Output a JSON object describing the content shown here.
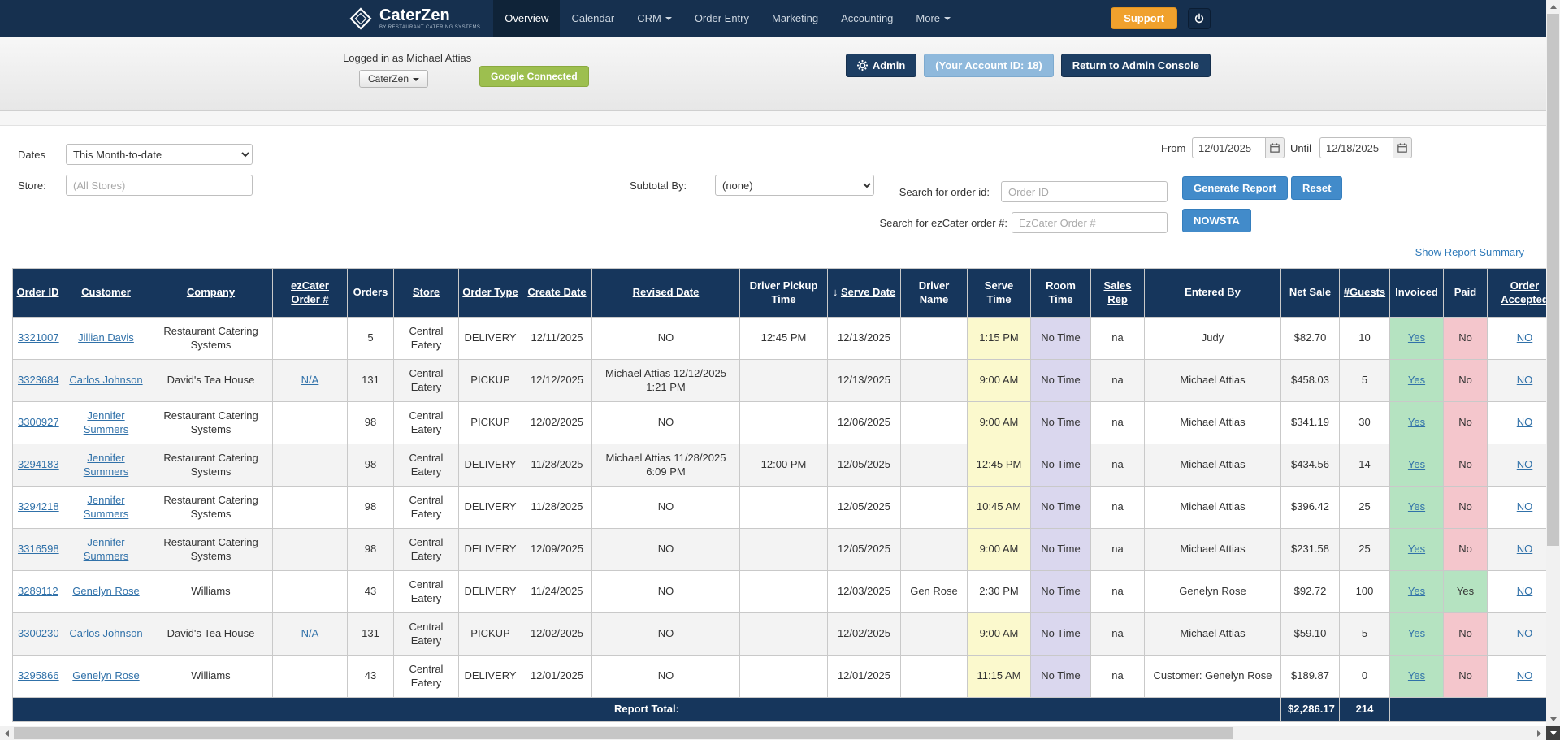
{
  "colors": {
    "navy": "#16365c",
    "navbar_navy": "#16304f",
    "accent_orange": "#f0a12d",
    "button_blue": "#428bca",
    "google_green": "#9dbf4f",
    "link_blue": "#3071a9",
    "hl_yellow": "#fbf9cd",
    "hl_purple": "#dad7ee",
    "hl_green": "#b5e3c1",
    "hl_pink": "#f4c6cc"
  },
  "navbar": {
    "brand": "CaterZen",
    "tagline": "BY RESTAURANT CATERING SYSTEMS",
    "items": [
      {
        "label": "Overview",
        "active": true,
        "caret": false
      },
      {
        "label": "Calendar",
        "active": false,
        "caret": false
      },
      {
        "label": "CRM",
        "active": false,
        "caret": true
      },
      {
        "label": "Order Entry",
        "active": false,
        "caret": false
      },
      {
        "label": "Marketing",
        "active": false,
        "caret": false
      },
      {
        "label": "Accounting",
        "active": false,
        "caret": false
      },
      {
        "label": "More",
        "active": false,
        "caret": true
      }
    ],
    "support_label": "Support"
  },
  "subheader": {
    "logged_in": "Logged in as Michael Attias",
    "brand_dropdown": "CaterZen",
    "google_connected": "Google Connected",
    "admin": "Admin",
    "account_id": "(Your Account ID: 18)",
    "return_console": "Return to Admin Console"
  },
  "filters": {
    "dates_label": "Dates",
    "dates_value": "This Month-to-date",
    "store_label": "Store:",
    "store_placeholder": "(All Stores)",
    "subtotal_label": "Subtotal By:",
    "subtotal_value": "(none)",
    "order_search_label": "Search for order id:",
    "order_search_placeholder": "Order ID",
    "ezcater_search_label": "Search for ezCater order #:",
    "ezcater_search_placeholder": "EzCater Order #",
    "from_label": "From",
    "from_value": "12/01/2025",
    "until_label": "Until",
    "until_value": "12/18/2025",
    "generate_label": "Generate Report",
    "reset_label": "Reset",
    "nowsta_label": "NOWSTA",
    "summary_link": "Show Report Summary"
  },
  "table": {
    "columns": [
      {
        "key": "order_id",
        "label": "Order ID",
        "sortable": true
      },
      {
        "key": "customer",
        "label": "Customer",
        "sortable": true
      },
      {
        "key": "company",
        "label": "Company",
        "sortable": true
      },
      {
        "key": "ezcater",
        "label": "ezCater Order #",
        "sortable": true
      },
      {
        "key": "orders",
        "label": "Orders",
        "sortable": false
      },
      {
        "key": "store",
        "label": "Store",
        "sortable": true
      },
      {
        "key": "order_type",
        "label": "Order Type",
        "sortable": true
      },
      {
        "key": "create_date",
        "label": "Create Date",
        "sortable": true
      },
      {
        "key": "revised_date",
        "label": "Revised Date",
        "sortable": true
      },
      {
        "key": "pickup_time",
        "label": "Driver Pickup Time",
        "sortable": false
      },
      {
        "key": "serve_date",
        "label": "Serve Date",
        "sortable": true,
        "sorted": "desc"
      },
      {
        "key": "driver_name",
        "label": "Driver Name",
        "sortable": false
      },
      {
        "key": "serve_time",
        "label": "Serve Time",
        "sortable": false
      },
      {
        "key": "room_time",
        "label": "Room Time",
        "sortable": false
      },
      {
        "key": "sales_rep",
        "label": "Sales Rep",
        "sortable": true
      },
      {
        "key": "entered_by",
        "label": "Entered By",
        "sortable": false
      },
      {
        "key": "net_sale",
        "label": "Net Sale",
        "sortable": false
      },
      {
        "key": "guests",
        "label": "#Guests",
        "sortable": true
      },
      {
        "key": "invoiced",
        "label": "Invoiced",
        "sortable": false
      },
      {
        "key": "paid",
        "label": "Paid",
        "sortable": false
      },
      {
        "key": "accepted",
        "label": "Order Accepted",
        "sortable": true
      }
    ],
    "rows": [
      {
        "order_id": "3321007",
        "customer": "Jillian Davis",
        "company": "Restaurant Catering Systems",
        "ezcater": "",
        "orders": "5",
        "store": "Central Eatery",
        "order_type": "DELIVERY",
        "create_date": "12/11/2025",
        "revised_date": "NO",
        "pickup_time": "12:45 PM",
        "serve_date": "12/13/2025",
        "driver_name": "",
        "serve_time": "1:15 PM",
        "serve_time_hl": true,
        "room_time": "No Time",
        "sales_rep": "na",
        "entered_by": "Judy",
        "net_sale": "$82.70",
        "guests": "10",
        "invoiced": "Yes",
        "paid": "No",
        "accepted": "NO"
      },
      {
        "order_id": "3323684",
        "customer": "Carlos Johnson",
        "company": "David's Tea House",
        "ezcater": "N/A",
        "orders": "131",
        "store": "Central Eatery",
        "order_type": "PICKUP",
        "create_date": "12/12/2025",
        "revised_date": "Michael Attias 12/12/2025 1:21 PM",
        "pickup_time": "",
        "serve_date": "12/13/2025",
        "driver_name": "",
        "serve_time": "9:00 AM",
        "serve_time_hl": true,
        "room_time": "No Time",
        "sales_rep": "na",
        "entered_by": "Michael Attias",
        "net_sale": "$458.03",
        "guests": "5",
        "invoiced": "Yes",
        "paid": "No",
        "accepted": "NO"
      },
      {
        "order_id": "3300927",
        "customer": "Jennifer Summers",
        "company": "Restaurant Catering Systems",
        "ezcater": "",
        "orders": "98",
        "store": "Central Eatery",
        "order_type": "PICKUP",
        "create_date": "12/02/2025",
        "revised_date": "NO",
        "pickup_time": "",
        "serve_date": "12/06/2025",
        "driver_name": "",
        "serve_time": "9:00 AM",
        "serve_time_hl": true,
        "room_time": "No Time",
        "sales_rep": "na",
        "entered_by": "Michael Attias",
        "net_sale": "$341.19",
        "guests": "30",
        "invoiced": "Yes",
        "paid": "No",
        "accepted": "NO"
      },
      {
        "order_id": "3294183",
        "customer": "Jennifer Summers",
        "company": "Restaurant Catering Systems",
        "ezcater": "",
        "orders": "98",
        "store": "Central Eatery",
        "order_type": "DELIVERY",
        "create_date": "11/28/2025",
        "revised_date": "Michael Attias 11/28/2025 6:09 PM",
        "pickup_time": "12:00 PM",
        "serve_date": "12/05/2025",
        "driver_name": "",
        "serve_time": "12:45 PM",
        "serve_time_hl": true,
        "room_time": "No Time",
        "sales_rep": "na",
        "entered_by": "Michael Attias",
        "net_sale": "$434.56",
        "guests": "14",
        "invoiced": "Yes",
        "paid": "No",
        "accepted": "NO"
      },
      {
        "order_id": "3294218",
        "customer": "Jennifer Summers",
        "company": "Restaurant Catering Systems",
        "ezcater": "",
        "orders": "98",
        "store": "Central Eatery",
        "order_type": "DELIVERY",
        "create_date": "11/28/2025",
        "revised_date": "NO",
        "pickup_time": "",
        "serve_date": "12/05/2025",
        "driver_name": "",
        "serve_time": "10:45 AM",
        "serve_time_hl": true,
        "room_time": "No Time",
        "sales_rep": "na",
        "entered_by": "Michael Attias",
        "net_sale": "$396.42",
        "guests": "25",
        "invoiced": "Yes",
        "paid": "No",
        "accepted": "NO"
      },
      {
        "order_id": "3316598",
        "customer": "Jennifer Summers",
        "company": "Restaurant Catering Systems",
        "ezcater": "",
        "orders": "98",
        "store": "Central Eatery",
        "order_type": "DELIVERY",
        "create_date": "12/09/2025",
        "revised_date": "NO",
        "pickup_time": "",
        "serve_date": "12/05/2025",
        "driver_name": "",
        "serve_time": "9:00 AM",
        "serve_time_hl": true,
        "room_time": "No Time",
        "sales_rep": "na",
        "entered_by": "Michael Attias",
        "net_sale": "$231.58",
        "guests": "25",
        "invoiced": "Yes",
        "paid": "No",
        "accepted": "NO"
      },
      {
        "order_id": "3289112",
        "customer": "Genelyn Rose",
        "company": "Williams",
        "ezcater": "",
        "orders": "43",
        "store": "Central Eatery",
        "order_type": "DELIVERY",
        "create_date": "11/24/2025",
        "revised_date": "NO",
        "pickup_time": "",
        "serve_date": "12/03/2025",
        "driver_name": "Gen Rose",
        "serve_time": "2:30 PM",
        "serve_time_hl": false,
        "room_time": "No Time",
        "sales_rep": "na",
        "entered_by": "Genelyn Rose",
        "net_sale": "$92.72",
        "guests": "100",
        "invoiced": "Yes",
        "paid": "Yes",
        "accepted": "NO"
      },
      {
        "order_id": "3300230",
        "customer": "Carlos Johnson",
        "company": "David's Tea House",
        "ezcater": "N/A",
        "orders": "131",
        "store": "Central Eatery",
        "order_type": "PICKUP",
        "create_date": "12/02/2025",
        "revised_date": "NO",
        "pickup_time": "",
        "serve_date": "12/02/2025",
        "driver_name": "",
        "serve_time": "9:00 AM",
        "serve_time_hl": true,
        "room_time": "No Time",
        "sales_rep": "na",
        "entered_by": "Michael Attias",
        "net_sale": "$59.10",
        "guests": "5",
        "invoiced": "Yes",
        "paid": "No",
        "accepted": "NO"
      },
      {
        "order_id": "3295866",
        "customer": "Genelyn Rose",
        "company": "Williams",
        "ezcater": "",
        "orders": "43",
        "store": "Central Eatery",
        "order_type": "DELIVERY",
        "create_date": "12/01/2025",
        "revised_date": "NO",
        "pickup_time": "",
        "serve_date": "12/01/2025",
        "driver_name": "",
        "serve_time": "11:15 AM",
        "serve_time_hl": true,
        "room_time": "No Time",
        "sales_rep": "na",
        "entered_by": "Customer: Genelyn Rose",
        "net_sale": "$189.87",
        "guests": "0",
        "invoiced": "Yes",
        "paid": "No",
        "accepted": "NO"
      }
    ],
    "footer": {
      "label": "Report Total:",
      "net_sale": "$2,286.17",
      "guests": "214"
    }
  }
}
